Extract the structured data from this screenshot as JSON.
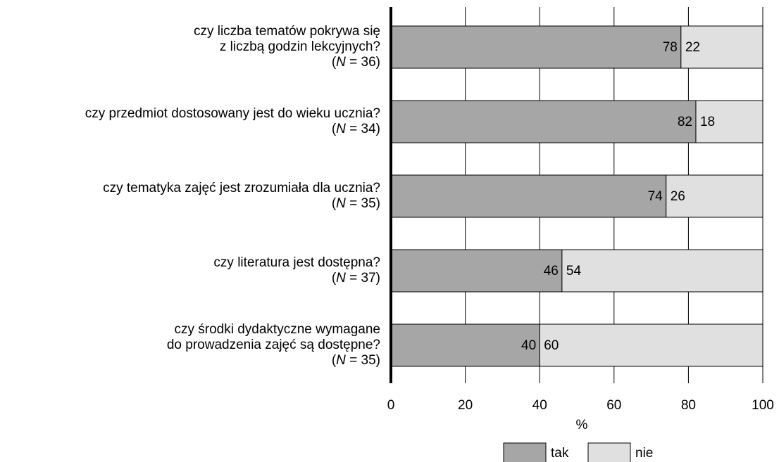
{
  "chart_data": {
    "type": "stacked-barh",
    "categories": [
      [
        "czy liczba tematów pokrywa się",
        "z liczbą godzin lekcyjnych?",
        "(N = 36)"
      ],
      [
        "czy przedmiot dostosowany jest do wieku ucznia?",
        "(N = 34)"
      ],
      [
        "czy tematyka zajęć jest zrozumiała dla ucznia?",
        "(N = 35)"
      ],
      [
        "czy literatura jest dostępna?",
        "(N = 37)"
      ],
      [
        "czy środki dydaktyczne wymagane",
        "do prowadzenia zajęć są dostępne?",
        "(N = 35)"
      ]
    ],
    "series": [
      {
        "name": "tak",
        "color": "#a6a6a6",
        "values": [
          78,
          82,
          74,
          46,
          40
        ]
      },
      {
        "name": "nie",
        "color": "#e0e0e0",
        "values": [
          22,
          18,
          26,
          54,
          60
        ]
      }
    ],
    "xlabel": "%",
    "xlim": [
      0,
      100
    ],
    "xticks": [
      0,
      20,
      40,
      60,
      80,
      100
    ],
    "grid": true
  }
}
